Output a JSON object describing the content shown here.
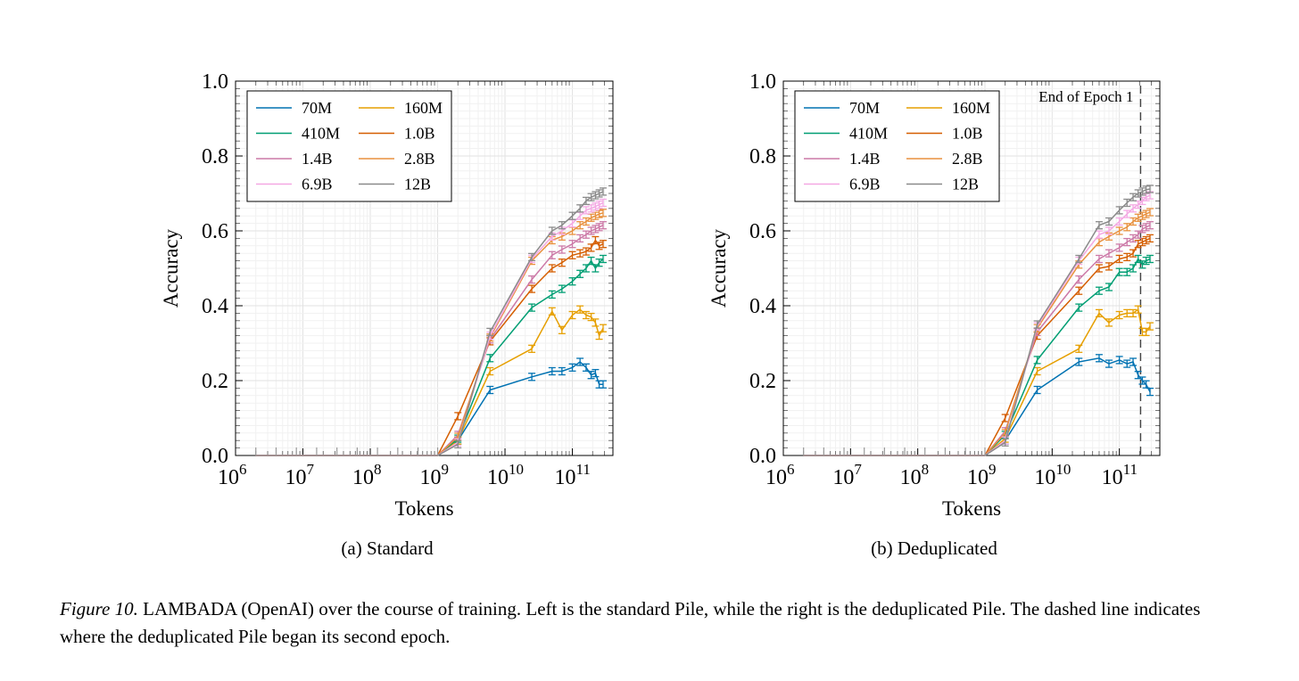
{
  "figure": {
    "label": "Figure 10.",
    "caption_text": " LAMBADA (OpenAI) over the course of training. Left is the standard Pile, while the right is the deduplicated Pile. The dashed line indicates where the deduplicated Pile began its second epoch."
  },
  "subcaptions": {
    "a": "(a) Standard",
    "b": "(b) Deduplicated"
  },
  "chart_data": [
    {
      "type": "line",
      "panel": "a",
      "title": "",
      "xlabel": "Tokens",
      "ylabel": "Accuracy",
      "xscale": "log",
      "xlim": [
        1000000,
        400000000000
      ],
      "ylim": [
        0,
        1
      ],
      "xticks": [
        {
          "base": "10",
          "exp": "6"
        },
        {
          "base": "10",
          "exp": "7"
        },
        {
          "base": "10",
          "exp": "8"
        },
        {
          "base": "10",
          "exp": "9"
        },
        {
          "base": "10",
          "exp": "10"
        },
        {
          "base": "10",
          "exp": "11"
        }
      ],
      "yticks": [
        "0.0",
        "0.2",
        "0.4",
        "0.6",
        "0.8",
        "1.0"
      ],
      "grid": true,
      "legend_position": "top-left",
      "x": [
        2000000,
        4000000,
        8000000,
        16000000,
        32000000,
        64000000,
        128000000,
        256000000,
        512000000,
        1000000000,
        2000000000,
        6000000000,
        25000000000,
        50000000000,
        70000000000,
        100000000000,
        130000000000,
        160000000000,
        190000000000,
        220000000000,
        250000000000,
        286000000000
      ],
      "series": [
        {
          "name": "70M",
          "color": "#0072b2",
          "values": [
            0,
            0,
            0,
            0,
            0,
            0,
            0,
            0,
            0,
            0,
            0.04,
            0.175,
            0.21,
            0.225,
            0.225,
            0.235,
            0.25,
            0.235,
            0.215,
            0.22,
            0.19,
            0.19
          ]
        },
        {
          "name": "160M",
          "color": "#e69f00",
          "values": [
            0,
            0,
            0,
            0,
            0,
            0,
            0,
            0,
            0,
            0,
            0.04,
            0.225,
            0.285,
            0.385,
            0.335,
            0.375,
            0.39,
            0.375,
            0.37,
            0.355,
            0.32,
            0.34
          ]
        },
        {
          "name": "410M",
          "color": "#009e73",
          "values": [
            0,
            0,
            0,
            0,
            0,
            0,
            0,
            0,
            0,
            0,
            0.045,
            0.26,
            0.395,
            0.43,
            0.445,
            0.465,
            0.485,
            0.5,
            0.52,
            0.5,
            0.515,
            0.525
          ]
        },
        {
          "name": "1.0B",
          "color": "#d55e00",
          "values": [
            0,
            0,
            0,
            0,
            0,
            0,
            0,
            0,
            0,
            0,
            0.105,
            0.305,
            0.445,
            0.5,
            0.515,
            0.535,
            0.54,
            0.545,
            0.555,
            0.575,
            0.56,
            0.565
          ]
        },
        {
          "name": "1.4B",
          "color": "#cc79a7",
          "values": [
            0,
            0,
            0,
            0,
            0,
            0,
            0,
            0,
            0,
            0,
            0.055,
            0.31,
            0.47,
            0.535,
            0.55,
            0.565,
            0.58,
            0.59,
            0.6,
            0.605,
            0.61,
            0.615
          ]
        },
        {
          "name": "2.8B",
          "color": "#e8913e",
          "values": [
            0,
            0,
            0,
            0,
            0,
            0,
            0,
            0,
            0,
            0,
            0.05,
            0.315,
            0.52,
            0.575,
            0.585,
            0.6,
            0.615,
            0.625,
            0.635,
            0.64,
            0.645,
            0.648
          ]
        },
        {
          "name": "6.9B",
          "color": "#f4a8e3",
          "values": [
            0,
            0,
            0,
            0,
            0,
            0,
            0,
            0,
            0,
            0,
            0.035,
            0.32,
            0.525,
            0.585,
            0.6,
            0.62,
            0.64,
            0.655,
            0.66,
            0.665,
            0.67,
            0.675
          ]
        },
        {
          "name": "12B",
          "color": "#8a8a8a",
          "values": [
            0,
            0,
            0,
            0,
            0,
            0,
            0,
            0,
            0,
            0,
            0.03,
            0.33,
            0.53,
            0.6,
            0.615,
            0.64,
            0.66,
            0.68,
            0.69,
            0.695,
            0.7,
            0.705
          ]
        }
      ]
    },
    {
      "type": "line",
      "panel": "b",
      "title": "",
      "xlabel": "Tokens",
      "ylabel": "Accuracy",
      "xscale": "log",
      "xlim": [
        1000000,
        400000000000
      ],
      "ylim": [
        0,
        1
      ],
      "xticks": [
        {
          "base": "10",
          "exp": "6"
        },
        {
          "base": "10",
          "exp": "7"
        },
        {
          "base": "10",
          "exp": "8"
        },
        {
          "base": "10",
          "exp": "9"
        },
        {
          "base": "10",
          "exp": "10"
        },
        {
          "base": "10",
          "exp": "11"
        }
      ],
      "yticks": [
        "0.0",
        "0.2",
        "0.4",
        "0.6",
        "0.8",
        "1.0"
      ],
      "grid": true,
      "legend_position": "top-left",
      "annotation": {
        "text": "End of Epoch 1",
        "x": 207000000000
      },
      "x": [
        2000000,
        4000000,
        8000000,
        16000000,
        32000000,
        64000000,
        128000000,
        256000000,
        512000000,
        1000000000,
        2000000000,
        6000000000,
        25000000000,
        50000000000,
        70000000000,
        100000000000,
        130000000000,
        160000000000,
        190000000000,
        220000000000,
        250000000000,
        286000000000
      ],
      "series": [
        {
          "name": "70M",
          "color": "#0072b2",
          "values": [
            0,
            0,
            0,
            0,
            0,
            0,
            0,
            0,
            0,
            0,
            0.04,
            0.175,
            0.25,
            0.26,
            0.245,
            0.255,
            0.245,
            0.25,
            0.215,
            0.2,
            0.19,
            0.17
          ]
        },
        {
          "name": "160M",
          "color": "#e69f00",
          "values": [
            0,
            0,
            0,
            0,
            0,
            0,
            0,
            0,
            0,
            0,
            0.045,
            0.225,
            0.285,
            0.38,
            0.355,
            0.375,
            0.38,
            0.38,
            0.39,
            0.33,
            0.33,
            0.345
          ]
        },
        {
          "name": "410M",
          "color": "#009e73",
          "values": [
            0,
            0,
            0,
            0,
            0,
            0,
            0,
            0,
            0,
            0,
            0.055,
            0.255,
            0.395,
            0.44,
            0.45,
            0.49,
            0.49,
            0.5,
            0.525,
            0.51,
            0.52,
            0.525
          ]
        },
        {
          "name": "1.0B",
          "color": "#d55e00",
          "values": [
            0,
            0,
            0,
            0,
            0,
            0,
            0,
            0,
            0,
            0,
            0.1,
            0.32,
            0.44,
            0.5,
            0.505,
            0.525,
            0.53,
            0.54,
            0.565,
            0.57,
            0.575,
            0.58
          ]
        },
        {
          "name": "1.4B",
          "color": "#cc79a7",
          "values": [
            0,
            0,
            0,
            0,
            0,
            0,
            0,
            0,
            0,
            0,
            0.065,
            0.33,
            0.47,
            0.525,
            0.54,
            0.555,
            0.57,
            0.58,
            0.59,
            0.605,
            0.61,
            0.615
          ]
        },
        {
          "name": "2.8B",
          "color": "#e8913e",
          "values": [
            0,
            0,
            0,
            0,
            0,
            0,
            0,
            0,
            0,
            0,
            0.06,
            0.34,
            0.51,
            0.57,
            0.585,
            0.6,
            0.61,
            0.625,
            0.635,
            0.64,
            0.645,
            0.65
          ]
        },
        {
          "name": "6.9B",
          "color": "#f4a8e3",
          "values": [
            0,
            0,
            0,
            0,
            0,
            0,
            0,
            0,
            0,
            0,
            0.04,
            0.345,
            0.52,
            0.59,
            0.6,
            0.625,
            0.645,
            0.66,
            0.67,
            0.68,
            0.69,
            0.695
          ]
        },
        {
          "name": "12B",
          "color": "#8a8a8a",
          "values": [
            0,
            0,
            0,
            0,
            0,
            0,
            0,
            0,
            0,
            0,
            0.035,
            0.35,
            0.525,
            0.615,
            0.625,
            0.655,
            0.675,
            0.69,
            0.7,
            0.705,
            0.71,
            0.712
          ]
        }
      ]
    }
  ]
}
